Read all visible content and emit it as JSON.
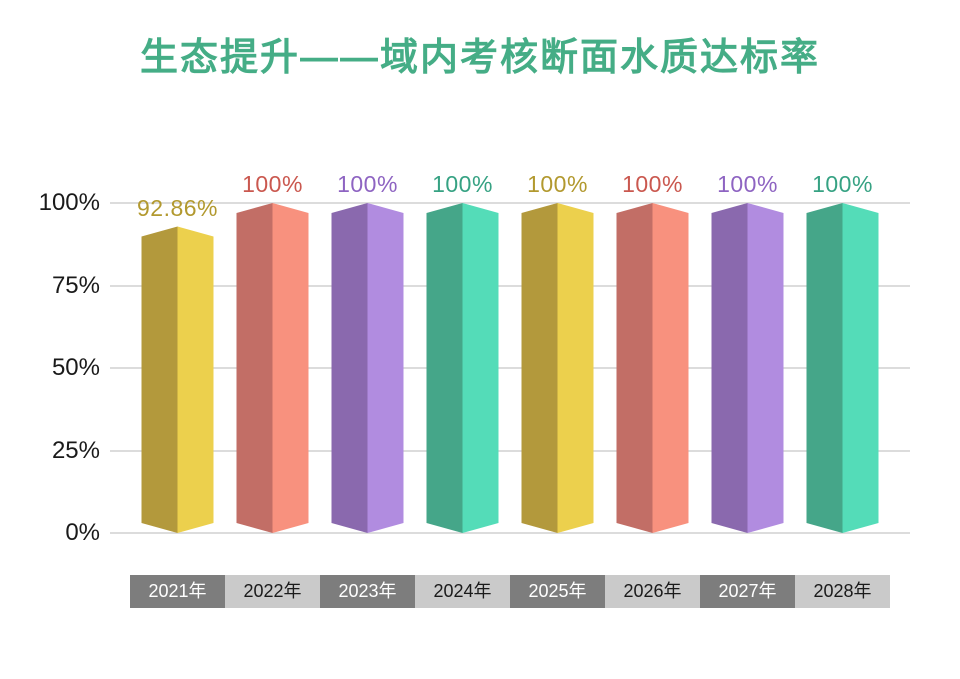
{
  "canvas": {
    "background": "#ffffff"
  },
  "chart_data": {
    "type": "bar",
    "title": "生态提升——域内考核断面水质达标率",
    "title_color": "#45ad86",
    "xlabel": "",
    "ylabel": "",
    "categories": [
      "2021年",
      "2022年",
      "2023年",
      "2024年",
      "2025年",
      "2026年",
      "2027年",
      "2028年"
    ],
    "values": [
      92.86,
      100,
      100,
      100,
      100,
      100,
      100,
      100
    ],
    "value_labels": [
      "92.86%",
      "100%",
      "100%",
      "100%",
      "100%",
      "100%",
      "100%",
      "100%"
    ],
    "ylim": [
      0,
      100
    ],
    "ytick_values": [
      0,
      25,
      50,
      75,
      100
    ],
    "ytick_labels": [
      "0%",
      "25%",
      "50%",
      "75%",
      "100%"
    ],
    "grid": true,
    "legend_position": "none",
    "axis_text_color": "#1a1a1a",
    "gridline_color": "#dcdcdc",
    "bar_style": "hexagonal-prism-3d",
    "palette": [
      {
        "name": "gold",
        "left": "#b3993c",
        "right": "#ecd04d",
        "label": "#b2992f"
      },
      {
        "name": "salmon",
        "left": "#c26e66",
        "right": "#f8917e",
        "label": "#ca584f"
      },
      {
        "name": "purple",
        "left": "#8a69ae",
        "right": "#b18ce0",
        "label": "#8e64c2"
      },
      {
        "name": "teal",
        "left": "#45a689",
        "right": "#54dcb8",
        "label": "#36a283"
      }
    ],
    "bar_color_indices": [
      0,
      1,
      2,
      3,
      0,
      1,
      2,
      3
    ],
    "xband": {
      "dark_bg": "#7d7d7d",
      "dark_text": "#ffffff",
      "light_bg": "#cacaca",
      "light_text": "#1a1a1a"
    }
  }
}
